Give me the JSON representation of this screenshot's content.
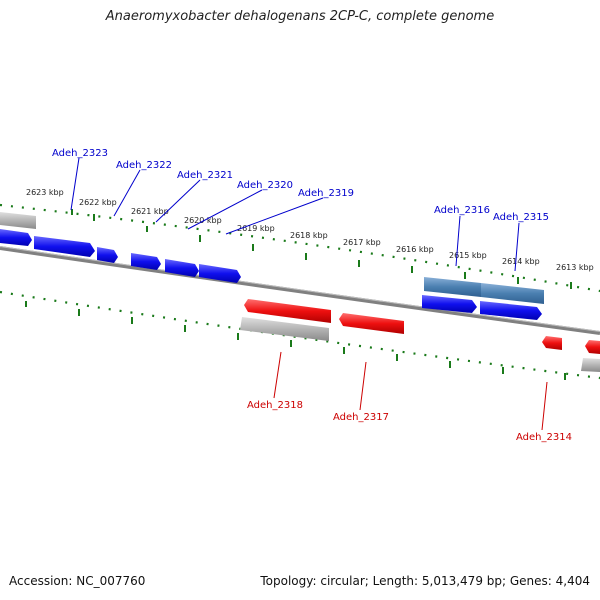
{
  "title": "Anaeromyxobacter dehalogenans 2CP-C, complete genome",
  "footer": {
    "accession": "Accession: NC_007760",
    "stats": "Topology: circular; Length: 5,013,479 bp; Genes: 4,404"
  },
  "colors": {
    "forward_gene": "#0000ee",
    "reverse_gene": "#ee0000",
    "selected_gene": "#4a7fb0",
    "pseudo_gene": "#b4b4b4",
    "backbone": "#808080",
    "ticks": "#1a7a1a"
  },
  "kbp_labels": [
    "2623 kbp",
    "2622 kbp",
    "2621 kbp",
    "2620 kbp",
    "2619 kbp",
    "2618 kbp",
    "2617 kbp",
    "2616 kbp",
    "2615 kbp",
    "2614 kbp",
    "2613 kbp"
  ],
  "genes_top": [
    {
      "label": "Adeh_2323"
    },
    {
      "label": "Adeh_2322"
    },
    {
      "label": "Adeh_2321"
    },
    {
      "label": "Adeh_2320"
    },
    {
      "label": "Adeh_2319"
    },
    {
      "label": "Adeh_2316"
    },
    {
      "label": "Adeh_2315"
    }
  ],
  "genes_bottom": [
    {
      "label": "Adeh_2318"
    },
    {
      "label": "Adeh_2317"
    },
    {
      "label": "Adeh_2314"
    }
  ]
}
